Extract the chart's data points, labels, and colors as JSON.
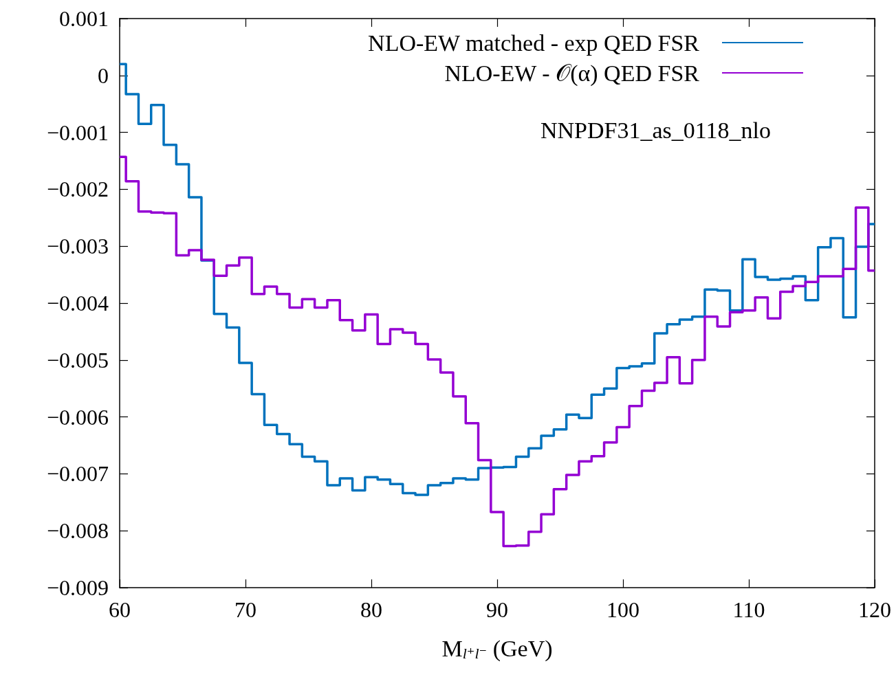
{
  "chart_data": {
    "type": "step",
    "xlabel": "M$_{l⁺l⁻}$ (GeV)",
    "annotations": [
      "NNPDF31_as_0118_nlo"
    ],
    "x": [
      60,
      61,
      62,
      63,
      64,
      65,
      66,
      67,
      68,
      69,
      70,
      71,
      72,
      73,
      74,
      75,
      76,
      77,
      78,
      79,
      80,
      81,
      82,
      83,
      84,
      85,
      86,
      87,
      88,
      89,
      90,
      91,
      92,
      93,
      94,
      95,
      96,
      97,
      98,
      99,
      100,
      101,
      102,
      103,
      104,
      105,
      106,
      107,
      108,
      109,
      110,
      111,
      112,
      113,
      114,
      115,
      116,
      117,
      118,
      119,
      120
    ],
    "series": [
      {
        "name": "NLO-EW matched - exp QED FSR",
        "color": "#0072bd",
        "values": [
          0.0002,
          -0.00033,
          -0.00085,
          -0.00052,
          -0.00122,
          -0.00156,
          -0.00214,
          -0.00325,
          -0.00419,
          -0.00443,
          -0.00505,
          -0.0056,
          -0.00614,
          -0.0063,
          -0.00648,
          -0.0067,
          -0.00678,
          -0.0072,
          -0.00708,
          -0.00729,
          -0.00706,
          -0.0071,
          -0.00718,
          -0.00734,
          -0.00737,
          -0.0072,
          -0.00716,
          -0.00708,
          -0.0071,
          -0.0069,
          -0.00689,
          -0.00688,
          -0.0067,
          -0.00655,
          -0.00633,
          -0.00622,
          -0.00596,
          -0.00602,
          -0.00561,
          -0.0055,
          -0.00514,
          -0.00511,
          -0.00506,
          -0.00453,
          -0.00437,
          -0.00429,
          -0.00424,
          -0.00376,
          -0.00378,
          -0.00413,
          -0.00323,
          -0.00354,
          -0.00359,
          -0.00357,
          -0.00353,
          -0.00395,
          -0.00302,
          -0.00286,
          -0.00425,
          -0.00301,
          -0.00261
        ]
      },
      {
        "name": "NLO-EW - 𝒪(α) QED FSR",
        "color": "#9400d3",
        "values": [
          -0.00143,
          -0.00186,
          -0.00239,
          -0.00241,
          -0.00242,
          -0.00316,
          -0.00307,
          -0.00324,
          -0.00352,
          -0.00334,
          -0.0032,
          -0.00384,
          -0.00371,
          -0.00384,
          -0.00408,
          -0.00393,
          -0.00408,
          -0.00395,
          -0.0043,
          -0.00448,
          -0.0042,
          -0.00472,
          -0.00446,
          -0.00452,
          -0.00472,
          -0.00499,
          -0.00522,
          -0.00564,
          -0.00611,
          -0.00676,
          -0.00767,
          -0.00827,
          -0.00826,
          -0.00802,
          -0.00771,
          -0.00727,
          -0.00702,
          -0.00678,
          -0.00669,
          -0.00645,
          -0.00618,
          -0.00581,
          -0.00554,
          -0.0054,
          -0.00495,
          -0.00541,
          -0.005,
          -0.00424,
          -0.00441,
          -0.00416,
          -0.00413,
          -0.0039,
          -0.00427,
          -0.0038,
          -0.0037,
          -0.00363,
          -0.00353,
          -0.00353,
          -0.0034,
          -0.00232,
          -0.00343
        ]
      }
    ],
    "xlim": [
      60,
      120
    ],
    "xticks": [
      60,
      70,
      80,
      90,
      100,
      110,
      120
    ],
    "ylim": [
      -0.009,
      0.001
    ],
    "yticks": [
      0.001,
      0,
      {
        "value": -0.001,
        "label": "−0.001"
      },
      {
        "value": -0.002,
        "label": "−0.002"
      },
      {
        "value": -0.003,
        "label": "−0.003"
      },
      {
        "value": -0.004,
        "label": "−0.004"
      },
      {
        "value": -0.005,
        "label": "−0.005"
      },
      {
        "value": -0.006,
        "label": "−0.006"
      },
      {
        "value": -0.007,
        "label": "−0.007"
      },
      {
        "value": -0.008,
        "label": "−0.008"
      },
      {
        "value": -0.009,
        "label": "−0.009"
      }
    ],
    "legend": "top right",
    "grid": false
  }
}
